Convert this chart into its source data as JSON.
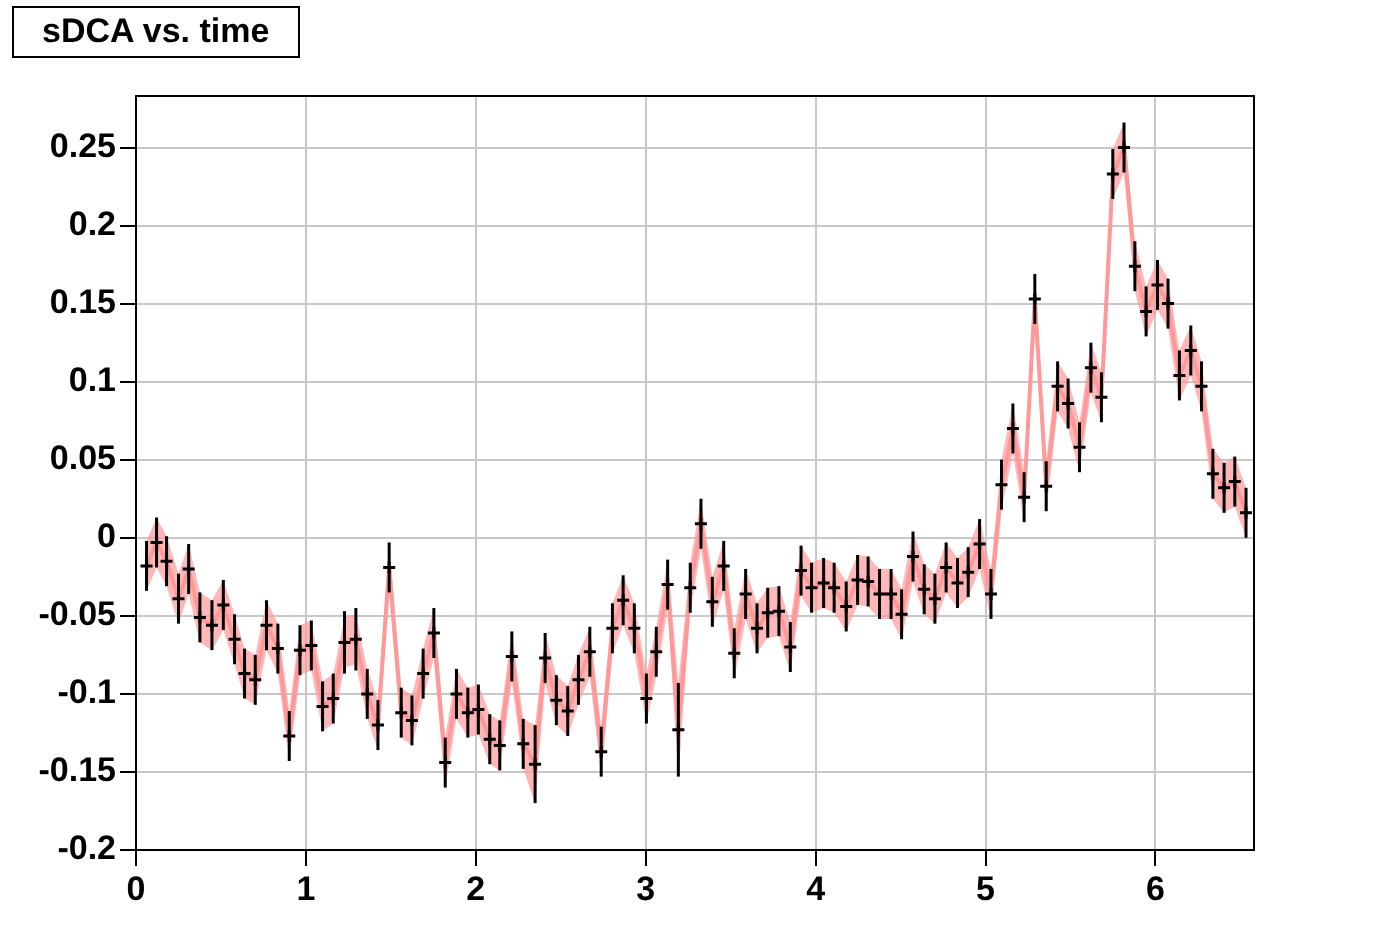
{
  "chart_data": {
    "type": "scatter",
    "title": "sDCA vs. time",
    "x": [
      0.062,
      0.121,
      0.18,
      0.25,
      0.31,
      0.376,
      0.447,
      0.514,
      0.58,
      0.639,
      0.702,
      0.768,
      0.835,
      0.902,
      0.965,
      1.032,
      1.098,
      1.161,
      1.227,
      1.294,
      1.361,
      1.424,
      1.49,
      1.561,
      1.624,
      1.69,
      1.753,
      1.82,
      1.886,
      1.953,
      2.015,
      2.082,
      2.141,
      2.212,
      2.279,
      2.349,
      2.408,
      2.474,
      2.541,
      2.604,
      2.671,
      2.738,
      2.804,
      2.867,
      2.933,
      3.004,
      3.062,
      3.129,
      3.192,
      3.262,
      3.325,
      3.392,
      3.459,
      3.521,
      3.588,
      3.655,
      3.718,
      3.784,
      3.851,
      3.914,
      3.976,
      4.047,
      4.109,
      4.18,
      4.247,
      4.309,
      4.376,
      4.444,
      4.506,
      4.573,
      4.639,
      4.702,
      4.768,
      4.835,
      4.898,
      4.965,
      5.032,
      5.094,
      5.161,
      5.227,
      5.29,
      5.357,
      5.424,
      5.486,
      5.553,
      5.62,
      5.682,
      5.749,
      5.815,
      5.879,
      5.945,
      6.012,
      6.074,
      6.141,
      6.208,
      6.271,
      6.338,
      6.404,
      6.467,
      6.533
    ],
    "series": [
      {
        "type": "line",
        "color": "#ff9999",
        "values": [
          -0.018,
          -0.003,
          -0.015,
          -0.039,
          -0.02,
          -0.051,
          -0.056,
          -0.043,
          -0.065,
          -0.087,
          -0.091,
          -0.056,
          -0.071,
          -0.127,
          -0.072,
          -0.069,
          -0.108,
          -0.103,
          -0.067,
          -0.065,
          -0.1,
          -0.12,
          -0.019,
          -0.112,
          -0.117,
          -0.087,
          -0.061,
          -0.144,
          -0.1,
          -0.112,
          -0.11,
          -0.129,
          -0.133,
          -0.076,
          -0.132,
          -0.145,
          -0.077,
          -0.104,
          -0.111,
          -0.091,
          -0.073,
          -0.137,
          -0.058,
          -0.04,
          -0.058,
          -0.103,
          -0.073,
          -0.03,
          -0.123,
          -0.032,
          0.009,
          -0.041,
          -0.018,
          -0.074,
          -0.036,
          -0.058,
          -0.048,
          -0.047,
          -0.07,
          -0.021,
          -0.032,
          -0.029,
          -0.032,
          -0.044,
          -0.027,
          -0.028,
          -0.036,
          -0.036,
          -0.049,
          -0.012,
          -0.033,
          -0.039,
          -0.019,
          -0.029,
          -0.022,
          -0.004,
          -0.036,
          0.034,
          0.07,
          0.026,
          0.153,
          0.033,
          0.097,
          0.086,
          0.058,
          0.109,
          0.09,
          0.233,
          0.25,
          0.174,
          0.145,
          0.162,
          0.15,
          0.104,
          0.12,
          0.097,
          0.041,
          0.032,
          0.036,
          0.016
        ],
        "lower": [
          -0.034,
          -0.019,
          -0.031,
          -0.055,
          -0.036,
          -0.067,
          -0.072,
          -0.059,
          -0.081,
          -0.103,
          -0.107,
          -0.072,
          -0.087,
          -0.143,
          -0.088,
          -0.085,
          -0.124,
          -0.119,
          -0.083,
          -0.081,
          -0.116,
          -0.136,
          -0.035,
          -0.128,
          -0.133,
          -0.103,
          -0.077,
          -0.16,
          -0.116,
          -0.128,
          -0.126,
          -0.145,
          -0.149,
          -0.092,
          -0.148,
          -0.17,
          -0.093,
          -0.12,
          -0.127,
          -0.107,
          -0.089,
          -0.153,
          -0.074,
          -0.056,
          -0.074,
          -0.119,
          -0.089,
          -0.046,
          -0.153,
          -0.048,
          -0.007,
          -0.057,
          -0.034,
          -0.09,
          -0.052,
          -0.074,
          -0.064,
          -0.063,
          -0.086,
          -0.037,
          -0.048,
          -0.045,
          -0.048,
          -0.06,
          -0.043,
          -0.044,
          -0.052,
          -0.052,
          -0.065,
          -0.028,
          -0.049,
          -0.055,
          -0.035,
          -0.045,
          -0.038,
          -0.02,
          -0.052,
          0.018,
          0.054,
          0.01,
          0.137,
          0.017,
          0.081,
          0.07,
          0.042,
          0.093,
          0.074,
          0.217,
          0.234,
          0.158,
          0.129,
          0.146,
          0.134,
          0.088,
          0.104,
          0.081,
          0.025,
          0.016,
          0.02,
          0
        ],
        "upper": [
          -0.002,
          0.013,
          0.001,
          -0.023,
          -0.004,
          -0.035,
          -0.04,
          -0.027,
          -0.049,
          -0.071,
          -0.075,
          -0.04,
          -0.055,
          -0.111,
          -0.056,
          -0.053,
          -0.092,
          -0.087,
          -0.051,
          -0.049,
          -0.084,
          -0.104,
          -0.003,
          -0.096,
          -0.101,
          -0.071,
          -0.045,
          -0.128,
          -0.084,
          -0.096,
          -0.094,
          -0.113,
          -0.117,
          -0.06,
          -0.116,
          -0.12,
          -0.061,
          -0.088,
          -0.095,
          -0.075,
          -0.057,
          -0.121,
          -0.042,
          -0.024,
          -0.042,
          -0.087,
          -0.057,
          -0.014,
          -0.093,
          -0.016,
          0.025,
          -0.025,
          -0.002,
          -0.058,
          -0.02,
          -0.042,
          -0.032,
          -0.031,
          -0.054,
          -0.005,
          -0.016,
          -0.013,
          -0.016,
          -0.028,
          -0.011,
          -0.012,
          -0.02,
          -0.02,
          -0.033,
          0.004,
          -0.017,
          -0.023,
          -0.003,
          -0.013,
          -0.006,
          0.012,
          -0.02,
          0.05,
          0.086,
          0.042,
          0.169,
          0.049,
          0.113,
          0.102,
          0.074,
          0.125,
          0.106,
          0.249,
          0.266,
          0.19,
          0.161,
          0.178,
          0.166,
          0.12,
          0.136,
          0.113,
          0.057,
          0.048,
          0.052,
          0.032
        ]
      },
      {
        "type": "scatter",
        "color": "#000000",
        "marker": "cross",
        "values": [
          -0.018,
          -0.003,
          -0.015,
          -0.039,
          -0.02,
          -0.051,
          -0.056,
          -0.043,
          -0.065,
          -0.087,
          -0.091,
          -0.056,
          -0.071,
          -0.127,
          -0.072,
          -0.069,
          -0.108,
          -0.103,
          -0.067,
          -0.065,
          -0.1,
          -0.12,
          -0.019,
          -0.112,
          -0.117,
          -0.087,
          -0.061,
          -0.144,
          -0.1,
          -0.112,
          -0.11,
          -0.129,
          -0.133,
          -0.076,
          -0.132,
          -0.145,
          -0.077,
          -0.104,
          -0.111,
          -0.091,
          -0.073,
          -0.137,
          -0.058,
          -0.04,
          -0.058,
          -0.103,
          -0.073,
          -0.03,
          -0.123,
          -0.032,
          0.009,
          -0.041,
          -0.018,
          -0.074,
          -0.036,
          -0.058,
          -0.048,
          -0.047,
          -0.07,
          -0.021,
          -0.032,
          -0.029,
          -0.032,
          -0.044,
          -0.027,
          -0.028,
          -0.036,
          -0.036,
          -0.049,
          -0.012,
          -0.033,
          -0.039,
          -0.019,
          -0.029,
          -0.022,
          -0.004,
          -0.036,
          0.034,
          0.07,
          0.026,
          0.153,
          0.033,
          0.097,
          0.086,
          0.058,
          0.109,
          0.09,
          0.233,
          0.25,
          0.174,
          0.145,
          0.162,
          0.15,
          0.104,
          0.12,
          0.097,
          0.041,
          0.032,
          0.036,
          0.016
        ],
        "errors": [
          0.016,
          0.016,
          0.016,
          0.016,
          0.016,
          0.016,
          0.016,
          0.016,
          0.016,
          0.016,
          0.016,
          0.016,
          0.016,
          0.016,
          0.016,
          0.016,
          0.016,
          0.016,
          0.02,
          0.02,
          0.016,
          0.016,
          0.016,
          0.016,
          0.016,
          0.016,
          0.016,
          0.016,
          0.016,
          0.016,
          0.016,
          0.016,
          0.016,
          0.016,
          0.016,
          0.025,
          0.016,
          0.016,
          0.016,
          0.016,
          0.016,
          0.016,
          0.016,
          0.016,
          0.016,
          0.016,
          0.016,
          0.016,
          0.03,
          0.016,
          0.016,
          0.016,
          0.016,
          0.016,
          0.016,
          0.016,
          0.016,
          0.016,
          0.016,
          0.016,
          0.016,
          0.016,
          0.016,
          0.016,
          0.016,
          0.016,
          0.016,
          0.016,
          0.016,
          0.016,
          0.016,
          0.016,
          0.016,
          0.016,
          0.016,
          0.016,
          0.016,
          0.016,
          0.016,
          0.016,
          0.016,
          0.016,
          0.016,
          0.016,
          0.016,
          0.016,
          0.016,
          0.016,
          0.016,
          0.016,
          0.016,
          0.016,
          0.016,
          0.016,
          0.016,
          0.016,
          0.016,
          0.016,
          0.016,
          0.016
        ]
      }
    ],
    "xlim": [
      0,
      6.58
    ],
    "ylim": [
      -0.2,
      0.283
    ],
    "xticks": [
      0,
      1,
      2,
      3,
      4,
      5,
      6
    ],
    "yticks": [
      -0.2,
      -0.15,
      -0.1,
      -0.05,
      0,
      0.05,
      0.1,
      0.15,
      0.2,
      0.25
    ],
    "grid": true,
    "marker": "none",
    "legend": false
  }
}
